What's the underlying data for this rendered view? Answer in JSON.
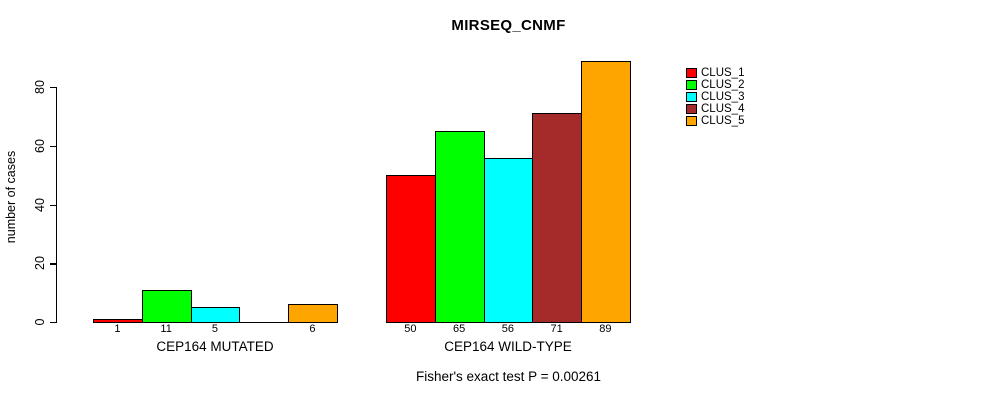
{
  "chart_data": {
    "type": "bar",
    "title": "MIRSEQ_CNMF",
    "ylabel": "number of cases",
    "xlabel": "",
    "categories": [
      "CEP164 MUTATED",
      "CEP164 WILD-TYPE"
    ],
    "series": [
      {
        "name": "CLUS_1",
        "color": "#ff0000",
        "values": [
          1,
          50
        ]
      },
      {
        "name": "CLUS_2",
        "color": "#00ff00",
        "values": [
          11,
          65
        ]
      },
      {
        "name": "CLUS_3",
        "color": "#00ffff",
        "values": [
          5,
          56
        ]
      },
      {
        "name": "CLUS_4",
        "color": "#a52a2a",
        "values": [
          0,
          71
        ]
      },
      {
        "name": "CLUS_5",
        "color": "#ffa500",
        "values": [
          6,
          89
        ]
      }
    ],
    "bar_value_labels": [
      [
        "1",
        "11",
        "5",
        "",
        "6"
      ],
      [
        "50",
        "65",
        "56",
        "71",
        "89"
      ]
    ],
    "ylim": [
      0,
      80
    ],
    "yticks": [
      "0",
      "20",
      "40",
      "60",
      "80"
    ],
    "grid": false,
    "legend_position": "right",
    "legend_labels": [
      "CLUS_1",
      "CLUS_2",
      "CLUS_3",
      "CLUS_4",
      "CLUS_5"
    ],
    "annotation": "Fisher's exact test P = 0.00261"
  }
}
